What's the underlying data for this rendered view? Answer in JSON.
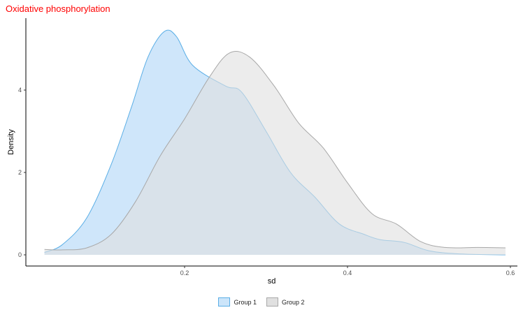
{
  "chart_data": {
    "type": "area",
    "title": "Oxidative phosphorylation",
    "xlabel": "sd",
    "ylabel": "Density",
    "xlim": [
      0.0,
      0.6
    ],
    "ylim": [
      0,
      5.7
    ],
    "x_ticks": [
      0.2,
      0.4,
      0.6
    ],
    "x_tick_labels": [
      "0.2",
      "0.4",
      "0.6"
    ],
    "y_ticks": [
      0,
      2,
      4
    ],
    "y_tick_labels": [
      "0",
      "2",
      "4"
    ],
    "grid": false,
    "legend_position": "bottom",
    "series": [
      {
        "name": "Group 1",
        "fill": "#cce5fa",
        "line": "#5aaee6",
        "points": [
          [
            0.028,
            0.06
          ],
          [
            0.05,
            0.25
          ],
          [
            0.08,
            0.9
          ],
          [
            0.11,
            2.2
          ],
          [
            0.135,
            3.6
          ],
          [
            0.155,
            4.8
          ],
          [
            0.175,
            5.42
          ],
          [
            0.19,
            5.3
          ],
          [
            0.21,
            4.6
          ],
          [
            0.25,
            4.1
          ],
          [
            0.27,
            3.95
          ],
          [
            0.3,
            3.0
          ],
          [
            0.33,
            2.0
          ],
          [
            0.36,
            1.4
          ],
          [
            0.39,
            0.75
          ],
          [
            0.42,
            0.5
          ],
          [
            0.44,
            0.37
          ],
          [
            0.47,
            0.3
          ],
          [
            0.5,
            0.1
          ],
          [
            0.54,
            0.02
          ],
          [
            0.594,
            0.0
          ]
        ]
      },
      {
        "name": "Group 2",
        "fill": "#e0e0e0",
        "line": "#a8a8a8",
        "points": [
          [
            0.028,
            0.13
          ],
          [
            0.05,
            0.12
          ],
          [
            0.08,
            0.17
          ],
          [
            0.11,
            0.5
          ],
          [
            0.14,
            1.3
          ],
          [
            0.17,
            2.4
          ],
          [
            0.2,
            3.3
          ],
          [
            0.23,
            4.3
          ],
          [
            0.255,
            4.9
          ],
          [
            0.28,
            4.8
          ],
          [
            0.31,
            4.1
          ],
          [
            0.34,
            3.2
          ],
          [
            0.37,
            2.6
          ],
          [
            0.4,
            1.75
          ],
          [
            0.43,
            1.0
          ],
          [
            0.46,
            0.75
          ],
          [
            0.49,
            0.32
          ],
          [
            0.52,
            0.18
          ],
          [
            0.56,
            0.18
          ],
          [
            0.594,
            0.17
          ]
        ]
      }
    ]
  }
}
